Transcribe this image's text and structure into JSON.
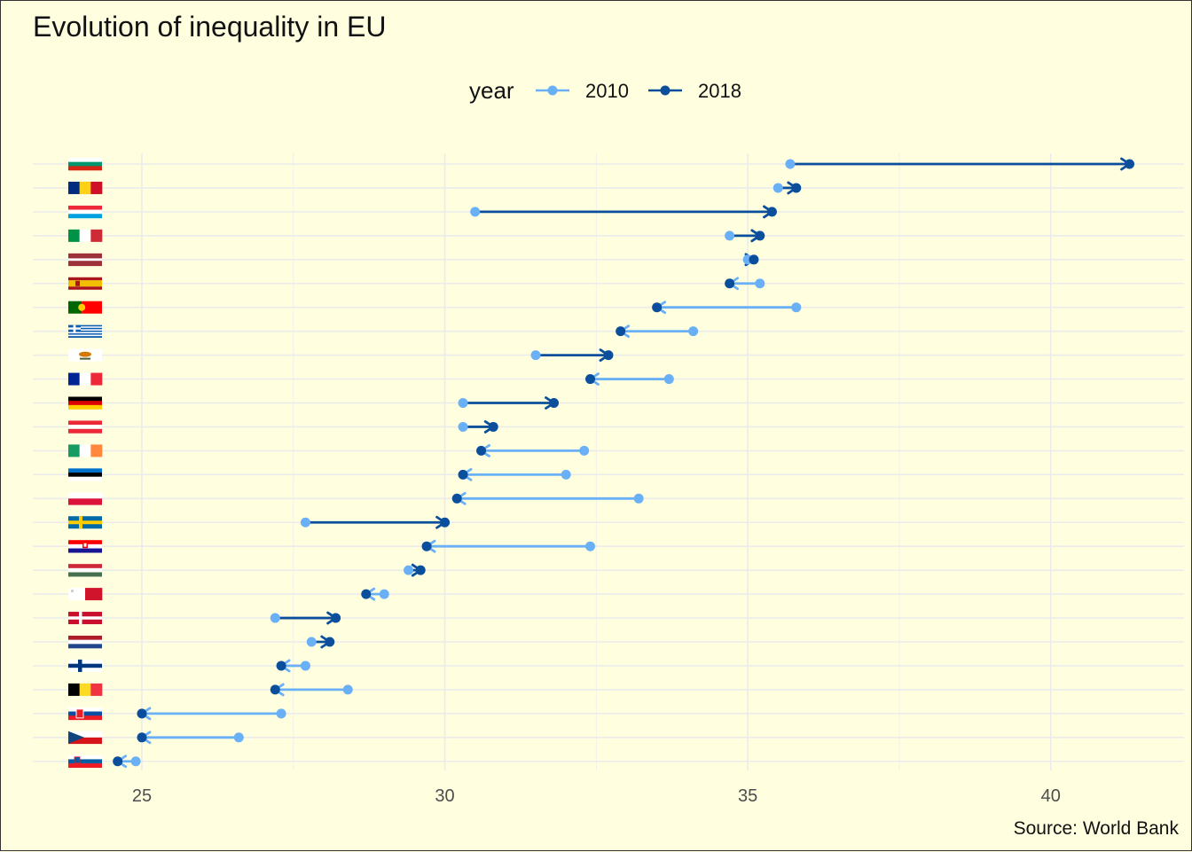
{
  "chart_data": {
    "type": "dumbbell",
    "title": "Evolution of inequality in EU",
    "caption": "Source: World Bank",
    "legend": {
      "title": "year",
      "placement": "top",
      "entries": [
        {
          "label": "2010",
          "color": "#6ab0f7"
        },
        {
          "label": "2018",
          "color": "#0b4f9c"
        }
      ]
    },
    "x_axis": {
      "ticks": [
        25,
        30,
        35,
        40
      ],
      "range": [
        23.2,
        42.2
      ],
      "grid": true
    },
    "y_axis": {
      "labels": "country flags",
      "grid": true
    },
    "rows": [
      {
        "flag": "bulgaria-flag",
        "v2010": 35.7,
        "v2018": 41.3
      },
      {
        "flag": "romania-flag",
        "v2010": 35.5,
        "v2018": 35.8
      },
      {
        "flag": "luxembourg-flag",
        "v2010": 30.5,
        "v2018": 35.4
      },
      {
        "flag": "italy-flag",
        "v2010": 34.7,
        "v2018": 35.2
      },
      {
        "flag": "latvia-flag",
        "v2010": 35.0,
        "v2018": 35.1
      },
      {
        "flag": "spain-flag",
        "v2010": 35.2,
        "v2018": 34.7
      },
      {
        "flag": "portugal-flag",
        "v2010": 35.8,
        "v2018": 33.5
      },
      {
        "flag": "greece-flag",
        "v2010": 34.1,
        "v2018": 32.9
      },
      {
        "flag": "cyprus-flag",
        "v2010": 31.5,
        "v2018": 32.7
      },
      {
        "flag": "france-flag",
        "v2010": 33.7,
        "v2018": 32.4
      },
      {
        "flag": "germany-flag",
        "v2010": 30.3,
        "v2018": 31.8
      },
      {
        "flag": "austria-flag",
        "v2010": 30.3,
        "v2018": 30.8
      },
      {
        "flag": "ireland-flag",
        "v2010": 32.3,
        "v2018": 30.6
      },
      {
        "flag": "estonia-flag",
        "v2010": 32.0,
        "v2018": 30.3
      },
      {
        "flag": "poland-flag",
        "v2010": 33.2,
        "v2018": 30.2
      },
      {
        "flag": "sweden-flag",
        "v2010": 27.7,
        "v2018": 30.0
      },
      {
        "flag": "croatia-flag",
        "v2010": 32.4,
        "v2018": 29.7
      },
      {
        "flag": "hungary-flag",
        "v2010": 29.4,
        "v2018": 29.6
      },
      {
        "flag": "malta-flag",
        "v2010": 29.0,
        "v2018": 28.7
      },
      {
        "flag": "denmark-flag",
        "v2010": 27.2,
        "v2018": 28.2
      },
      {
        "flag": "netherlands-flag",
        "v2010": 27.8,
        "v2018": 28.1
      },
      {
        "flag": "finland-flag",
        "v2010": 27.7,
        "v2018": 27.3
      },
      {
        "flag": "belgium-flag",
        "v2010": 28.4,
        "v2018": 27.2
      },
      {
        "flag": "slovakia-flag",
        "v2010": 27.3,
        "v2018": 25.0
      },
      {
        "flag": "czech-republic-flag",
        "v2010": 26.6,
        "v2018": 25.0
      },
      {
        "flag": "slovenia-flag",
        "v2010": 24.9,
        "v2018": 24.6
      }
    ]
  }
}
